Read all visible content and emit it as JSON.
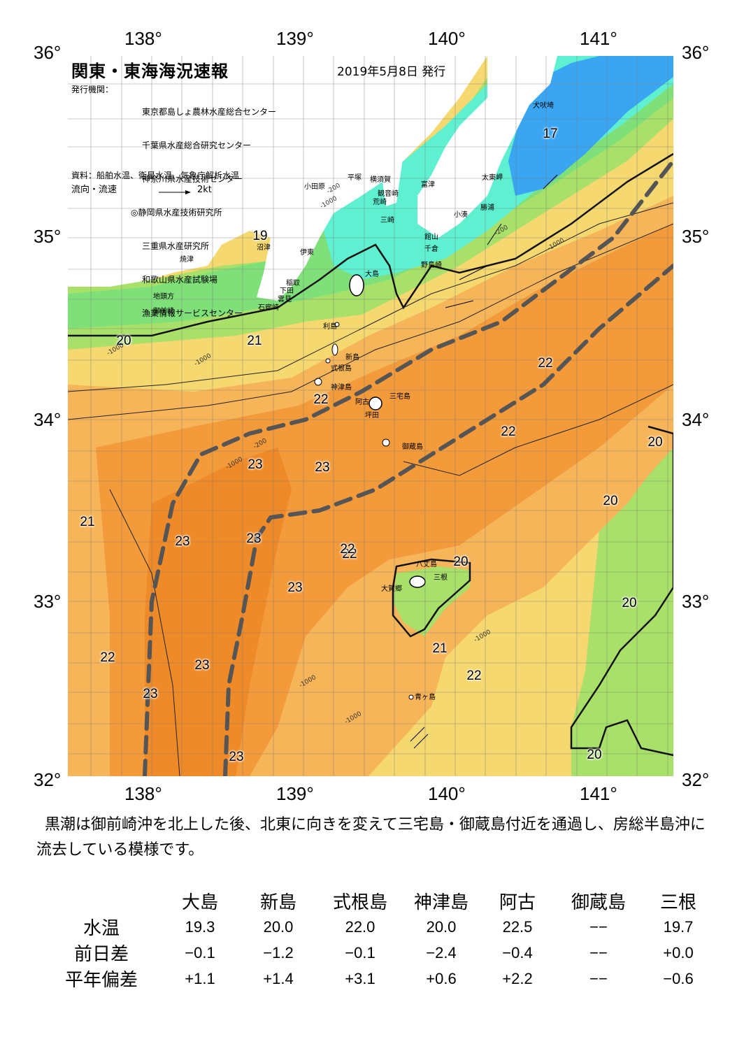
{
  "header": {
    "title": "関東・東海海況速報",
    "date": "2019年5月8日 発行",
    "publisher_label": "発行機関：",
    "publishers": [
      "東京都島しょ農林水産総合センター",
      "千葉県水産総合研究センター",
      "神奈川県水産技術センター",
      "◎静岡県水産技術研究所",
      "三重県水産研究所",
      "和歌山県水産試験場",
      "漁業情報サービスセンター"
    ],
    "source": "資料：船舶水温、衛星水温、気象庁解析水温",
    "legend_label": "流向・流速",
    "legend_speed": "2kt"
  },
  "axes": {
    "lon_labels": [
      "138°",
      "139°",
      "140°",
      "141°"
    ],
    "lat_labels": [
      "36°",
      "35°",
      "34°",
      "33°",
      "32°"
    ]
  },
  "places": [
    "犬吠埼",
    "太東岬",
    "勝浦",
    "小湊",
    "富津",
    "観音崎",
    "荒崎",
    "三崎",
    "横須賀",
    "平塚",
    "小田原",
    "館山",
    "千倉",
    "野島崎",
    "沼津",
    "伊東",
    "焼津",
    "稲取",
    "下田",
    "雲見",
    "石廊崎",
    "地頭方",
    "御前崎",
    "大島",
    "利島",
    "新島",
    "式根島",
    "神津島",
    "三宅島",
    "阿古",
    "坪田",
    "御蔵島",
    "八丈島",
    "三根",
    "大賀郷",
    "青ヶ島"
  ],
  "isotherm_labels": [
    "17",
    "19",
    "20",
    "21",
    "22",
    "22",
    "22",
    "22",
    "23",
    "23",
    "21",
    "23",
    "23",
    "22",
    "20",
    "23",
    "22",
    "23",
    "23",
    "20",
    "20",
    "20",
    "20",
    "21",
    "22",
    "23",
    "20"
  ],
  "depth_labels": [
    "-200",
    "-1000"
  ],
  "colors": {
    "cold_blue": "#3aa6f2",
    "cyan": "#5ef0d0",
    "light_green": "#7fe07a",
    "green": "#a8e06a",
    "yellow": "#f5d870",
    "light_orange": "#f7b55a",
    "orange": "#f39a3a",
    "deep_orange": "#ef8a28",
    "kuroshio_axis": "#555555"
  },
  "summary": "黒潮は御前崎沖を北上した後、北東に向きを変えて三宅島・御蔵島付近を通過し、房総半島沖に流去している模様です。",
  "table": {
    "stations": [
      "大島",
      "新島",
      "式根島",
      "神津島",
      "阿古",
      "御蔵島",
      "三根"
    ],
    "rows": [
      {
        "label": "水温",
        "values": [
          "19.3",
          "20.0",
          "22.0",
          "20.0",
          "22.5",
          "−−",
          "19.7"
        ]
      },
      {
        "label": "前日差",
        "values": [
          "−0.1",
          "−1.2",
          "−0.1",
          "−2.4",
          "−0.4",
          "−−",
          "+0.0"
        ]
      },
      {
        "label": "平年偏差",
        "values": [
          "+1.1",
          "+1.4",
          "+3.1",
          "+0.6",
          "+2.2",
          "−−",
          "−0.6"
        ]
      }
    ]
  }
}
